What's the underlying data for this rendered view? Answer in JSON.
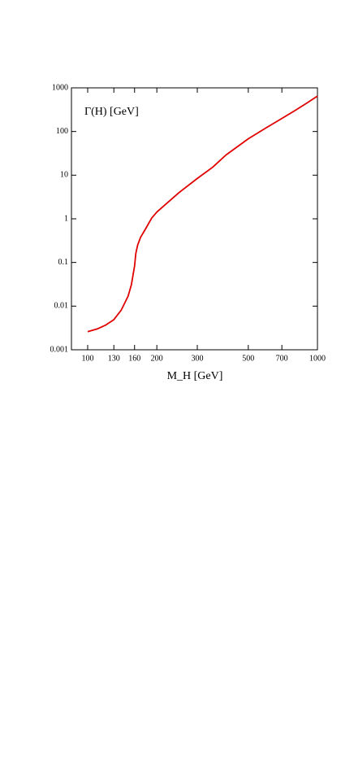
{
  "chart_data": {
    "type": "line",
    "y_label": "Γ(H) [GeV]",
    "x_label": "M_H [GeV]",
    "x_scale": "log",
    "y_scale": "log",
    "xlim": [
      85,
      1000
    ],
    "ylim": [
      0.001,
      1000
    ],
    "xticks": [
      100,
      130,
      160,
      200,
      300,
      500,
      700,
      1000
    ],
    "yticks": [
      0.001,
      0.01,
      0.1,
      1,
      10,
      100,
      1000
    ],
    "series": [
      {
        "color": "#e00000",
        "x": [
          100,
          110,
          120,
          130,
          140,
          150,
          155,
          160,
          162,
          165,
          170,
          175,
          180,
          190,
          200,
          250,
          300,
          350,
          400,
          500,
          600,
          700,
          800,
          900,
          1000
        ],
        "values": [
          0.0026,
          0.003,
          0.0037,
          0.0049,
          0.0081,
          0.017,
          0.031,
          0.083,
          0.16,
          0.25,
          0.38,
          0.49,
          0.63,
          1.04,
          1.43,
          4.0,
          8.4,
          15.2,
          29,
          68,
          123,
          199,
          304,
          449,
          647
        ]
      }
    ]
  }
}
